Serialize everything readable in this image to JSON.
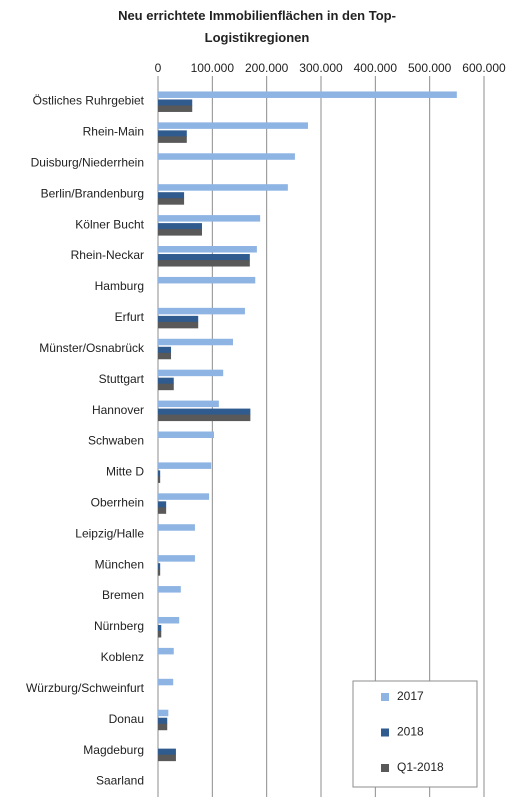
{
  "chart_data": {
    "type": "hbar",
    "title": "Neu errichtete Immobilienflächen in den Top-Logistikregionen",
    "categories": [
      "Östliches Ruhrgebiet",
      "Rhein-Main",
      "Duisburg/Niederrhein",
      "Berlin/Brandenburg",
      "Kölner Bucht",
      "Rhein-Neckar",
      "Hamburg",
      "Erfurt",
      "Münster/Osnabrück",
      "Stuttgart",
      "Hannover",
      "Schwaben",
      "Mitte D",
      "Oberrhein",
      "Leipzig/Halle",
      "München",
      "Bremen",
      "Nürnberg",
      "Koblenz",
      "Würzburg/Schweinfurt",
      "Donau",
      "Magdeburg",
      "Saarland"
    ],
    "series": [
      {
        "name": "2017",
        "color": "#8eb4e3",
        "values": [
          550000,
          276000,
          252000,
          239000,
          188000,
          182000,
          179000,
          160000,
          138000,
          120000,
          112000,
          103000,
          98000,
          94000,
          68000,
          68000,
          42000,
          39000,
          29000,
          28000,
          19000,
          0,
          0
        ]
      },
      {
        "name": "2018",
        "color": "#2f5b8f",
        "values": [
          63000,
          53000,
          0,
          48000,
          81000,
          169000,
          0,
          74000,
          24000,
          29000,
          170000,
          0,
          4000,
          15000,
          0,
          4000,
          0,
          6000,
          0,
          0,
          17000,
          33000,
          0
        ]
      },
      {
        "name": "Q1-2018",
        "color": "#595959",
        "values": [
          63000,
          53000,
          0,
          48000,
          81000,
          169000,
          0,
          74000,
          24000,
          29000,
          170000,
          0,
          4000,
          15000,
          0,
          4000,
          0,
          6000,
          0,
          0,
          17000,
          33000,
          0
        ]
      }
    ],
    "xlim": [
      0,
      600000
    ],
    "xticks": [
      0,
      {
        "value": 100000,
        "label": "100.000"
      },
      {
        "value": 200000,
        "label": "200.000"
      },
      {
        "value": 300000,
        "label": "300.000"
      },
      {
        "value": 400000,
        "label": "400.000"
      },
      {
        "value": 500000,
        "label": "500.000"
      },
      {
        "value": 600000,
        "label": "600.000"
      }
    ],
    "grid": true,
    "legend": "bottom-right"
  }
}
